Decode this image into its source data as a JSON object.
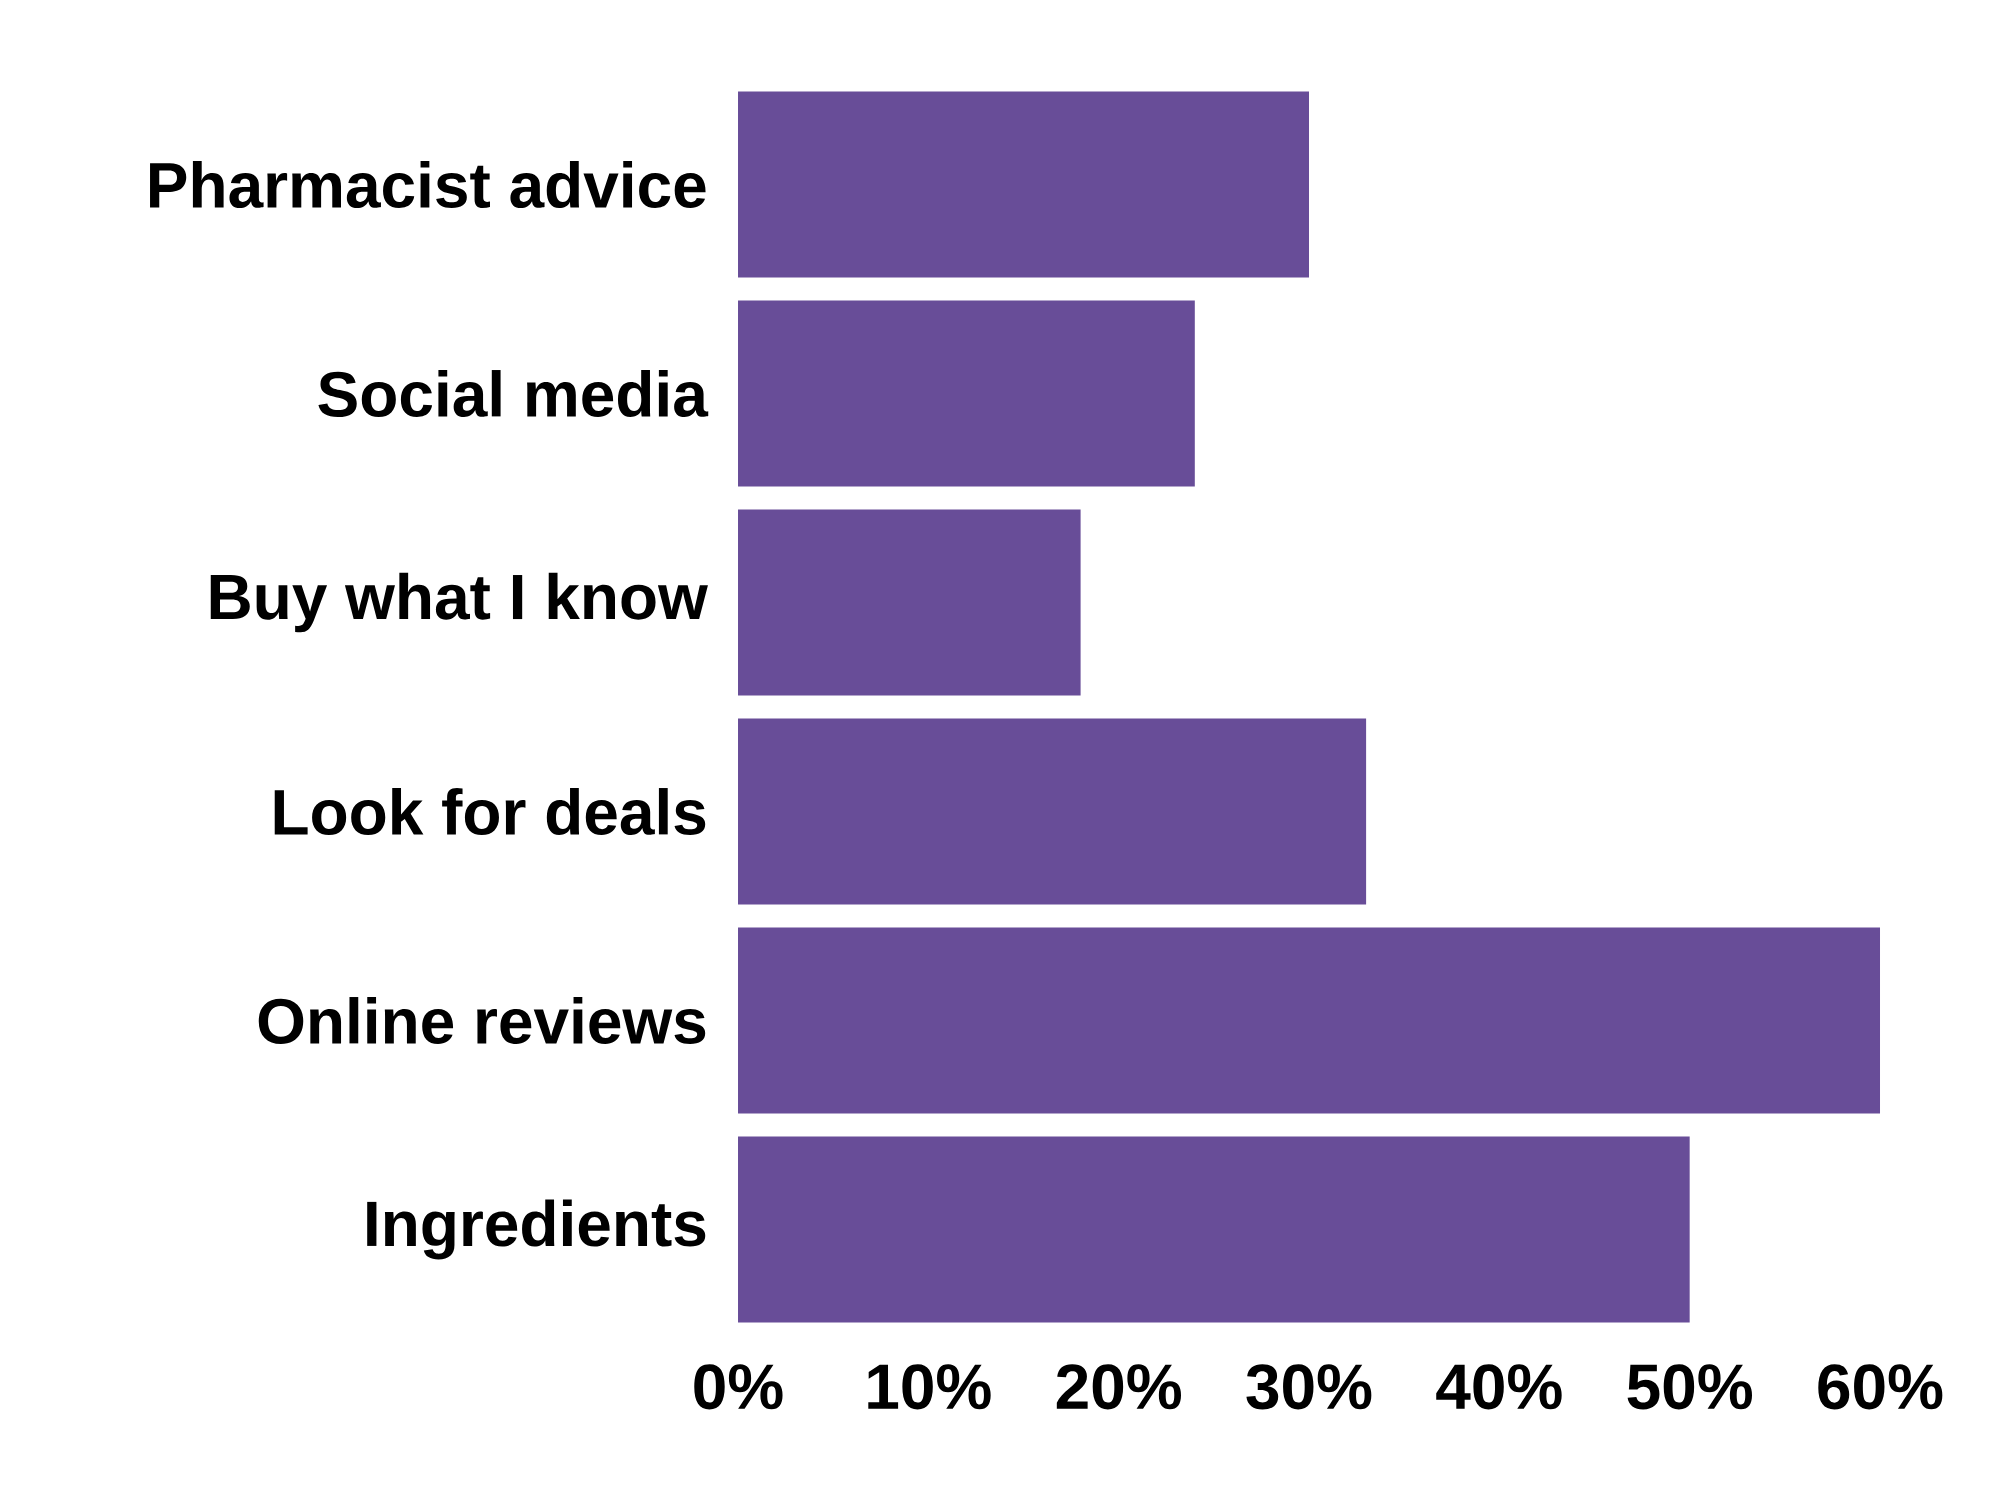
{
  "chart_data": {
    "type": "bar",
    "orientation": "horizontal",
    "categories": [
      "Pharmacist advice",
      "Social media",
      "Buy what I know",
      "Look for deals",
      "Online reviews",
      "Ingredients"
    ],
    "values": [
      30,
      24,
      18,
      33,
      60,
      50
    ],
    "color": "#684d98",
    "xlim": [
      0,
      60
    ],
    "xticks": [
      {
        "value": 0,
        "label": "0%"
      },
      {
        "value": 10,
        "label": "10%"
      },
      {
        "value": 20,
        "label": "20%"
      },
      {
        "value": 30,
        "label": "30%"
      },
      {
        "value": 40,
        "label": "40%"
      },
      {
        "value": 50,
        "label": "50%"
      },
      {
        "value": 60,
        "label": "60%"
      }
    ]
  }
}
